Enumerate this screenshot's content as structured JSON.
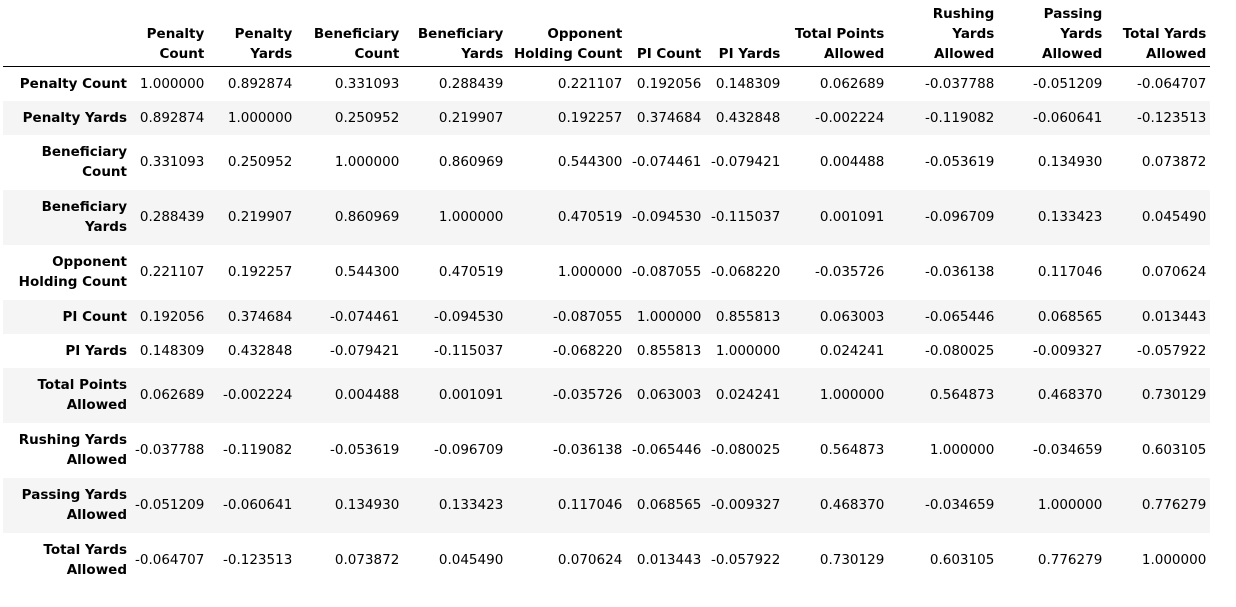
{
  "chart_data": {
    "type": "table",
    "columns": [
      "Penalty Count",
      "Penalty Yards",
      "Beneficiary Count",
      "Beneficiary Yards",
      "Opponent Holding Count",
      "PI Count",
      "PI Yards",
      "Total Points Allowed",
      "Rushing Yards Allowed",
      "Passing Yards Allowed",
      "Total Yards Allowed"
    ],
    "index": [
      "Penalty Count",
      "Penalty Yards",
      "Beneficiary Count",
      "Beneficiary Yards",
      "Opponent Holding Count",
      "PI Count",
      "PI Yards",
      "Total Points Allowed",
      "Rushing Yards Allowed",
      "Passing Yards Allowed",
      "Total Yards Allowed"
    ],
    "values": [
      [
        "1.000000",
        "0.892874",
        "0.331093",
        "0.288439",
        "0.221107",
        "0.192056",
        "0.148309",
        "0.062689",
        "-0.037788",
        "-0.051209",
        "-0.064707"
      ],
      [
        "0.892874",
        "1.000000",
        "0.250952",
        "0.219907",
        "0.192257",
        "0.374684",
        "0.432848",
        "-0.002224",
        "-0.119082",
        "-0.060641",
        "-0.123513"
      ],
      [
        "0.331093",
        "0.250952",
        "1.000000",
        "0.860969",
        "0.544300",
        "-0.074461",
        "-0.079421",
        "0.004488",
        "-0.053619",
        "0.134930",
        "0.073872"
      ],
      [
        "0.288439",
        "0.219907",
        "0.860969",
        "1.000000",
        "0.470519",
        "-0.094530",
        "-0.115037",
        "0.001091",
        "-0.096709",
        "0.133423",
        "0.045490"
      ],
      [
        "0.221107",
        "0.192257",
        "0.544300",
        "0.470519",
        "1.000000",
        "-0.087055",
        "-0.068220",
        "-0.035726",
        "-0.036138",
        "0.117046",
        "0.070624"
      ],
      [
        "0.192056",
        "0.374684",
        "-0.074461",
        "-0.094530",
        "-0.087055",
        "1.000000",
        "0.855813",
        "0.063003",
        "-0.065446",
        "0.068565",
        "0.013443"
      ],
      [
        "0.148309",
        "0.432848",
        "-0.079421",
        "-0.115037",
        "-0.068220",
        "0.855813",
        "1.000000",
        "0.024241",
        "-0.080025",
        "-0.009327",
        "-0.057922"
      ],
      [
        "0.062689",
        "-0.002224",
        "0.004488",
        "0.001091",
        "-0.035726",
        "0.063003",
        "0.024241",
        "1.000000",
        "0.564873",
        "0.468370",
        "0.730129"
      ],
      [
        "-0.037788",
        "-0.119082",
        "-0.053619",
        "-0.096709",
        "-0.036138",
        "-0.065446",
        "-0.080025",
        "0.564873",
        "1.000000",
        "-0.034659",
        "0.603105"
      ],
      [
        "-0.051209",
        "-0.060641",
        "0.134930",
        "0.133423",
        "0.117046",
        "0.068565",
        "-0.009327",
        "0.468370",
        "-0.034659",
        "1.000000",
        "0.776279"
      ],
      [
        "-0.064707",
        "-0.123513",
        "0.073872",
        "0.045490",
        "0.070624",
        "0.013443",
        "-0.057922",
        "0.730129",
        "0.603105",
        "0.776279",
        "1.000000"
      ]
    ]
  }
}
